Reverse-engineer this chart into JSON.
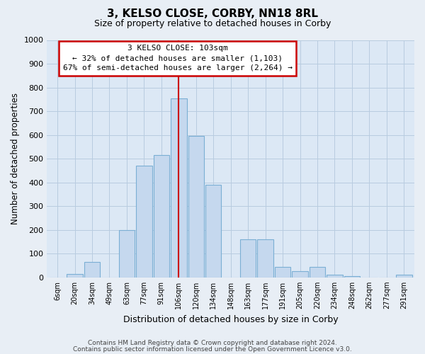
{
  "title": "3, KELSO CLOSE, CORBY, NN18 8RL",
  "subtitle": "Size of property relative to detached houses in Corby",
  "xlabel": "Distribution of detached houses by size in Corby",
  "ylabel": "Number of detached properties",
  "footer_line1": "Contains HM Land Registry data © Crown copyright and database right 2024.",
  "footer_line2": "Contains public sector information licensed under the Open Government Licence v3.0.",
  "bin_labels": [
    "6sqm",
    "20sqm",
    "34sqm",
    "49sqm",
    "63sqm",
    "77sqm",
    "91sqm",
    "106sqm",
    "120sqm",
    "134sqm",
    "148sqm",
    "163sqm",
    "177sqm",
    "191sqm",
    "205sqm",
    "220sqm",
    "234sqm",
    "248sqm",
    "262sqm",
    "277sqm",
    "291sqm"
  ],
  "bar_heights": [
    0,
    15,
    65,
    0,
    200,
    470,
    515,
    755,
    595,
    390,
    0,
    160,
    160,
    45,
    25,
    45,
    10,
    5,
    0,
    0,
    10
  ],
  "bar_color": "#c5d8ee",
  "bar_edge_color": "#7bafd4",
  "vline_x_index": 7,
  "vline_color": "#cc0000",
  "annotation_text": "3 KELSO CLOSE: 103sqm\n← 32% of detached houses are smaller (1,103)\n67% of semi-detached houses are larger (2,264) →",
  "annotation_box_color": "#ffffff",
  "annotation_box_edge_color": "#cc0000",
  "ylim": [
    0,
    1000
  ],
  "yticks": [
    0,
    100,
    200,
    300,
    400,
    500,
    600,
    700,
    800,
    900,
    1000
  ],
  "bg_color": "#e8eef5",
  "plot_bg_color": "#dce8f5",
  "grid_color": "#b8cce0",
  "title_fontsize": 11,
  "subtitle_fontsize": 9
}
